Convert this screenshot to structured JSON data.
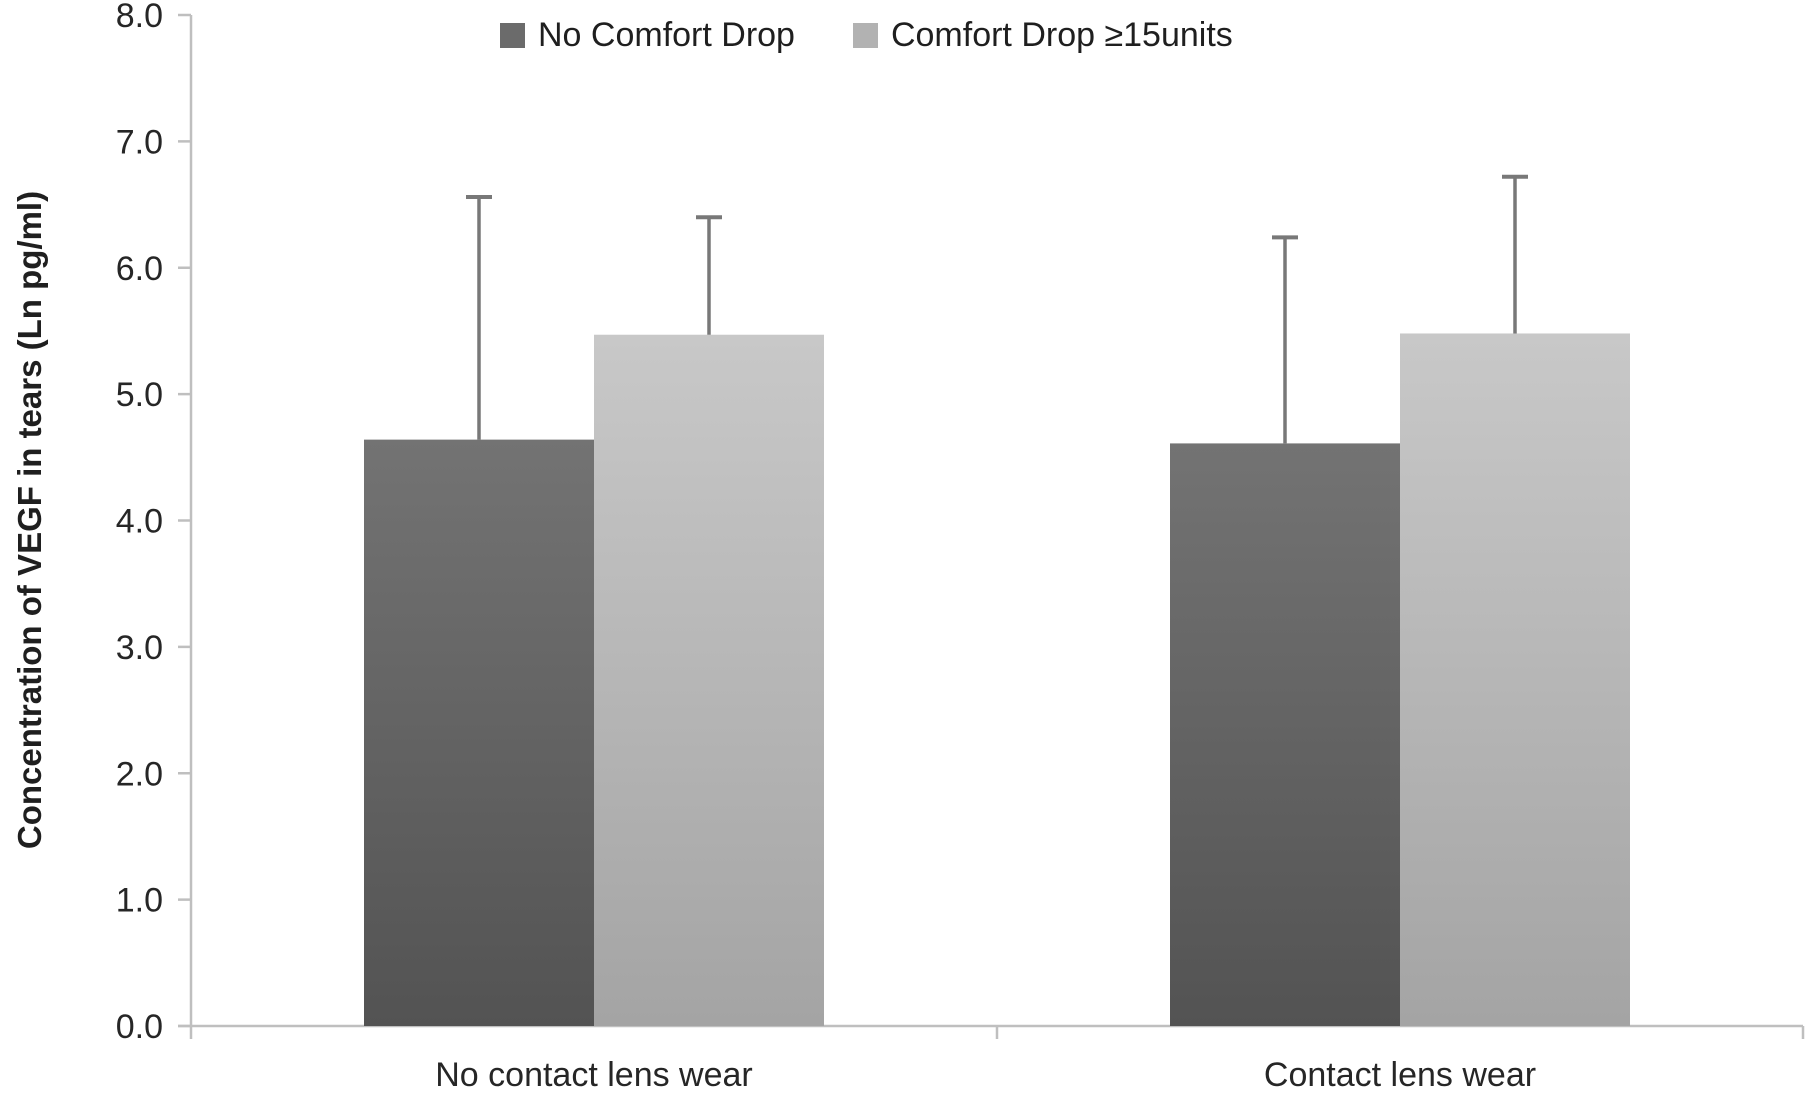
{
  "chart_data": {
    "type": "bar",
    "title": "",
    "categories": [
      "No contact lens wear",
      "Contact lens wear"
    ],
    "series": [
      {
        "name": "No Comfort Drop",
        "values": [
          4.64,
          4.61
        ],
        "errors_upper": [
          1.92,
          1.63
        ],
        "swatch": "#6b6b6b",
        "gradient_top": "#737373",
        "gradient_bottom": "#535353"
      },
      {
        "name": "Comfort Drop ≥15units",
        "values": [
          5.47,
          5.48
        ],
        "errors_upper": [
          0.93,
          1.24
        ],
        "swatch": "#b2b2b2",
        "gradient_top": "#c8c8c8",
        "gradient_bottom": "#a4a4a4"
      }
    ],
    "xlabel": "",
    "ylabel": "Concentration of VEGF in tears (Ln pg/ml)",
    "ylim": [
      0,
      8
    ],
    "ytick_step": 1.0,
    "ytick_labels": [
      "0.0",
      "1.0",
      "2.0",
      "3.0",
      "4.0",
      "5.0",
      "6.0",
      "7.0",
      "8.0"
    ],
    "grid": false,
    "legend_position": "top",
    "error_bars": "upper-only",
    "colors": {
      "axis": "#bfbfbf",
      "error_bar": "#787878",
      "text": "#262626",
      "background": "#ffffff"
    }
  }
}
